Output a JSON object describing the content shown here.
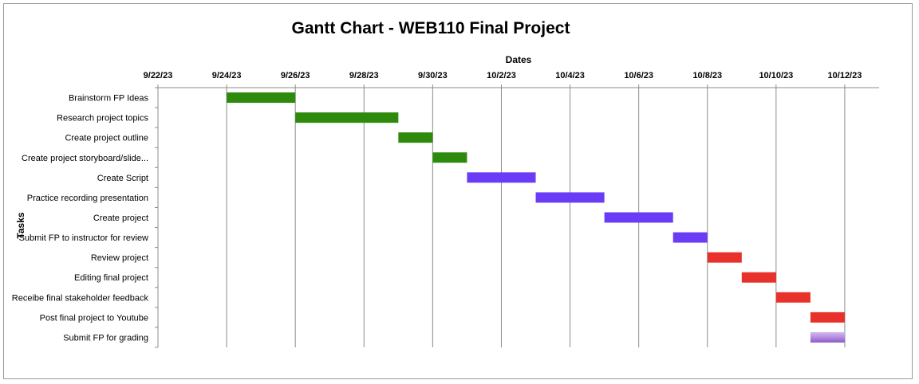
{
  "chart_data": {
    "type": "gantt",
    "title": "Gantt Chart - WEB110 Final Project",
    "xlabel": "Dates",
    "ylabel": "Tasks",
    "x_ticks": [
      "9/22/23",
      "9/24/23",
      "9/26/23",
      "9/28/23",
      "9/30/23",
      "10/2/23",
      "10/4/23",
      "10/6/23",
      "10/8/23",
      "10/10/23",
      "10/12/23"
    ],
    "xlim": [
      "2023-09-22",
      "2023-10-13"
    ],
    "grid": true,
    "tasks": [
      {
        "name": "Brainstorm FP Ideas",
        "start": "2023-09-24",
        "end": "2023-09-26",
        "color": "#2e8a0c"
      },
      {
        "name": "Research project topics",
        "start": "2023-09-26",
        "end": "2023-09-29",
        "color": "#2e8a0c"
      },
      {
        "name": "Create project outline",
        "start": "2023-09-29",
        "end": "2023-09-30",
        "color": "#2e8a0c"
      },
      {
        "name": "Create project storyboard/slide...",
        "start": "2023-09-30",
        "end": "2023-10-01",
        "color": "#2e8a0c"
      },
      {
        "name": "Create Script",
        "start": "2023-10-01",
        "end": "2023-10-03",
        "color": "#6a3cf5"
      },
      {
        "name": "Practice recording presentation",
        "start": "2023-10-03",
        "end": "2023-10-05",
        "color": "#6a3cf5"
      },
      {
        "name": "Create project",
        "start": "2023-10-05",
        "end": "2023-10-07",
        "color": "#6a3cf5"
      },
      {
        "name": "Submit FP to instructor for review",
        "start": "2023-10-07",
        "end": "2023-10-08",
        "color": "#6a3cf5"
      },
      {
        "name": "Review project",
        "start": "2023-10-08",
        "end": "2023-10-09",
        "color": "#e8312a"
      },
      {
        "name": "Editing final project",
        "start": "2023-10-09",
        "end": "2023-10-10",
        "color": "#e8312a"
      },
      {
        "name": "Receibe final stakeholder feedback",
        "start": "2023-10-10",
        "end": "2023-10-11",
        "color": "#e8312a"
      },
      {
        "name": "Post final project to Youtube",
        "start": "2023-10-11",
        "end": "2023-10-12",
        "color": "#e8312a"
      },
      {
        "name": "Submit FP for grading",
        "start": "2023-10-11",
        "end": "2023-10-12",
        "color": "#b48ce0"
      }
    ]
  }
}
